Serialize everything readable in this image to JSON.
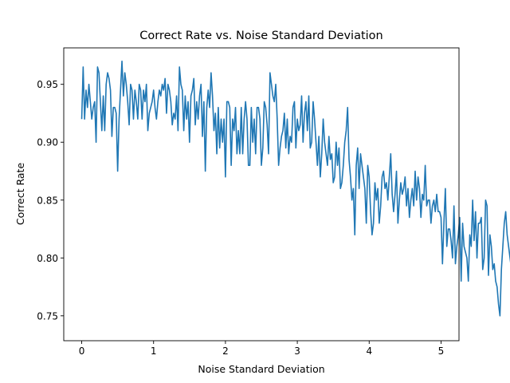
{
  "chart_data": {
    "type": "line",
    "title": "Correct Rate vs. Noise Standard Deviation",
    "xlabel": "Noise Standard Deviation",
    "ylabel": "Correct Rate",
    "xlim": [
      -0.25,
      5.25
    ],
    "ylim": [
      0.7285,
      0.9815
    ],
    "xticks": [
      0,
      1,
      2,
      3,
      4,
      5
    ],
    "yticks": [
      0.75,
      0.8,
      0.85,
      0.9,
      0.95
    ],
    "xtick_labels": [
      "0",
      "1",
      "2",
      "3",
      "4",
      "5"
    ],
    "ytick_labels": [
      "0.75",
      "0.80",
      "0.85",
      "0.90",
      "0.95"
    ],
    "grid": false,
    "line_color": "#1f77b4",
    "series": [
      {
        "x_start": 0,
        "x_step": 0.02,
        "values": [
          0.92,
          0.965,
          0.92,
          0.945,
          0.93,
          0.95,
          0.935,
          0.92,
          0.93,
          0.935,
          0.9,
          0.965,
          0.96,
          0.935,
          0.91,
          0.94,
          0.91,
          0.95,
          0.96,
          0.955,
          0.945,
          0.905,
          0.93,
          0.93,
          0.925,
          0.875,
          0.92,
          0.945,
          0.97,
          0.94,
          0.96,
          0.95,
          0.935,
          0.915,
          0.95,
          0.945,
          0.92,
          0.945,
          0.935,
          0.92,
          0.95,
          0.945,
          0.92,
          0.945,
          0.935,
          0.95,
          0.91,
          0.925,
          0.93,
          0.935,
          0.945,
          0.93,
          0.92,
          0.935,
          0.945,
          0.94,
          0.95,
          0.945,
          0.955,
          0.925,
          0.95,
          0.945,
          0.935,
          0.915,
          0.925,
          0.92,
          0.94,
          0.91,
          0.965,
          0.95,
          0.945,
          0.91,
          0.94,
          0.92,
          0.935,
          0.9,
          0.94,
          0.945,
          0.955,
          0.915,
          0.935,
          0.92,
          0.94,
          0.95,
          0.905,
          0.935,
          0.875,
          0.93,
          0.945,
          0.93,
          0.96,
          0.94,
          0.91,
          0.925,
          0.89,
          0.93,
          0.895,
          0.92,
          0.9,
          0.92,
          0.87,
          0.935,
          0.935,
          0.93,
          0.88,
          0.92,
          0.91,
          0.93,
          0.89,
          0.91,
          0.89,
          0.93,
          0.89,
          0.92,
          0.935,
          0.92,
          0.88,
          0.88,
          0.93,
          0.9,
          0.92,
          0.89,
          0.93,
          0.93,
          0.92,
          0.88,
          0.895,
          0.935,
          0.93,
          0.915,
          0.89,
          0.96,
          0.95,
          0.94,
          0.935,
          0.95,
          0.92,
          0.88,
          0.895,
          0.905,
          0.91,
          0.925,
          0.895,
          0.92,
          0.89,
          0.905,
          0.9,
          0.93,
          0.935,
          0.895,
          0.92,
          0.91,
          0.915,
          0.94,
          0.9,
          0.925,
          0.935,
          0.91,
          0.94,
          0.895,
          0.9,
          0.935,
          0.92,
          0.9,
          0.88,
          0.905,
          0.87,
          0.89,
          0.92,
          0.9,
          0.89,
          0.88,
          0.905,
          0.885,
          0.89,
          0.865,
          0.87,
          0.9,
          0.88,
          0.895,
          0.86,
          0.865,
          0.88,
          0.9,
          0.91,
          0.93,
          0.885,
          0.87,
          0.85,
          0.86,
          0.82,
          0.88,
          0.895,
          0.86,
          0.89,
          0.88,
          0.87,
          0.86,
          0.83,
          0.88,
          0.87,
          0.84,
          0.82,
          0.83,
          0.865,
          0.85,
          0.86,
          0.83,
          0.845,
          0.87,
          0.875,
          0.86,
          0.865,
          0.85,
          0.87,
          0.89,
          0.855,
          0.84,
          0.855,
          0.875,
          0.83,
          0.85,
          0.865,
          0.855,
          0.86,
          0.87,
          0.845,
          0.86,
          0.835,
          0.85,
          0.86,
          0.845,
          0.875,
          0.85,
          0.87,
          0.86,
          0.835,
          0.855,
          0.85,
          0.88,
          0.845,
          0.85,
          0.85,
          0.83,
          0.845,
          0.85,
          0.84,
          0.855,
          0.84,
          0.84,
          0.835,
          0.795,
          0.83,
          0.86,
          0.81,
          0.825,
          0.825,
          0.815,
          0.8,
          0.845,
          0.795,
          0.81,
          0.82,
          0.835,
          0.78,
          0.83,
          0.81,
          0.805,
          0.8,
          0.78,
          0.82,
          0.81,
          0.85,
          0.815,
          0.84,
          0.8,
          0.83,
          0.83,
          0.835,
          0.79,
          0.8,
          0.85,
          0.845,
          0.785,
          0.82,
          0.81,
          0.79,
          0.795,
          0.78,
          0.775,
          0.76,
          0.75,
          0.79,
          0.81,
          0.83,
          0.84,
          0.82,
          0.81,
          0.8,
          0.79,
          0.81,
          0.82,
          0.84,
          0.82,
          0.79,
          0.8,
          0.77,
          0.76,
          0.74,
          0.78,
          0.79,
          0.8,
          0.81,
          0.79,
          0.78,
          0.8,
          0.79,
          0.795
        ]
      }
    ]
  }
}
